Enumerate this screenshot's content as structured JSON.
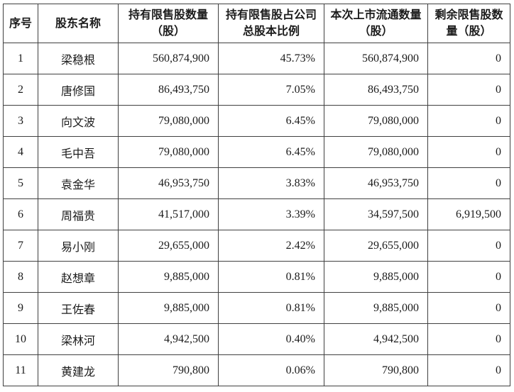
{
  "table": {
    "headers": [
      "序号",
      "股东名称",
      "持有限售股数量（股）",
      "持有限售股占公司总股本比例",
      "本次上市流通数量（股）",
      "剩余限售股数量（股）"
    ],
    "rows": [
      {
        "seq": "1",
        "name": "梁稳根",
        "held": "560,874,900",
        "ratio": "45.73%",
        "listed": "560,874,900",
        "remaining": "0"
      },
      {
        "seq": "2",
        "name": "唐修国",
        "held": "86,493,750",
        "ratio": "7.05%",
        "listed": "86,493,750",
        "remaining": "0"
      },
      {
        "seq": "3",
        "name": "向文波",
        "held": "79,080,000",
        "ratio": "6.45%",
        "listed": "79,080,000",
        "remaining": "0"
      },
      {
        "seq": "4",
        "name": "毛中吾",
        "held": "79,080,000",
        "ratio": "6.45%",
        "listed": "79,080,000",
        "remaining": "0"
      },
      {
        "seq": "5",
        "name": "袁金华",
        "held": "46,953,750",
        "ratio": "3.83%",
        "listed": "46,953,750",
        "remaining": "0"
      },
      {
        "seq": "6",
        "name": "周福贵",
        "held": "41,517,000",
        "ratio": "3.39%",
        "listed": "34,597,500",
        "remaining": "6,919,500"
      },
      {
        "seq": "7",
        "name": "易小刚",
        "held": "29,655,000",
        "ratio": "2.42%",
        "listed": "29,655,000",
        "remaining": "0"
      },
      {
        "seq": "8",
        "name": "赵想章",
        "held": "9,885,000",
        "ratio": "0.81%",
        "listed": "9,885,000",
        "remaining": "0"
      },
      {
        "seq": "9",
        "name": "王佐春",
        "held": "9,885,000",
        "ratio": "0.81%",
        "listed": "9,885,000",
        "remaining": "0"
      },
      {
        "seq": "10",
        "name": "梁林河",
        "held": "4,942,500",
        "ratio": "0.40%",
        "listed": "4,942,500",
        "remaining": "0"
      },
      {
        "seq": "11",
        "name": "黄建龙",
        "held": "790,800",
        "ratio": "0.06%",
        "listed": "790,800",
        "remaining": "0"
      }
    ],
    "colors": {
      "border": "#404040",
      "text": "#1b1b1b",
      "background": "#ffffff"
    }
  }
}
